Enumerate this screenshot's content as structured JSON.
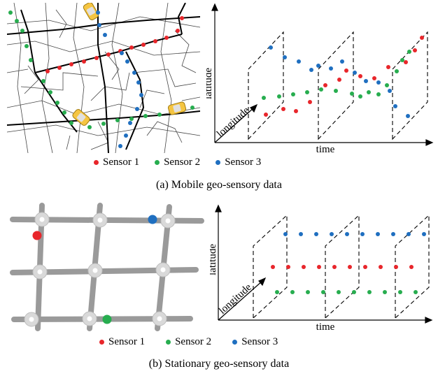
{
  "colors": {
    "sensor1": "#e8262b",
    "sensor2": "#27ad4f",
    "sensor3": "#1f6fc0",
    "road_gray": "#9a9a9a",
    "node_gray": "#d9d9d9"
  },
  "panel_a": {
    "caption": "(a) Mobile geo-sensory data",
    "axes": {
      "x": "time",
      "y": "latitude",
      "z": "longitude"
    },
    "legend": [
      "Sensor 1",
      "Sensor 2",
      "Sensor 3"
    ]
  },
  "panel_b": {
    "caption": "(b) Stationary geo-sensory data",
    "axes": {
      "x": "time",
      "y": "latitude",
      "z": "longitude"
    },
    "legend": [
      "Sensor 1",
      "Sensor 2",
      "Sensor 3"
    ]
  }
}
